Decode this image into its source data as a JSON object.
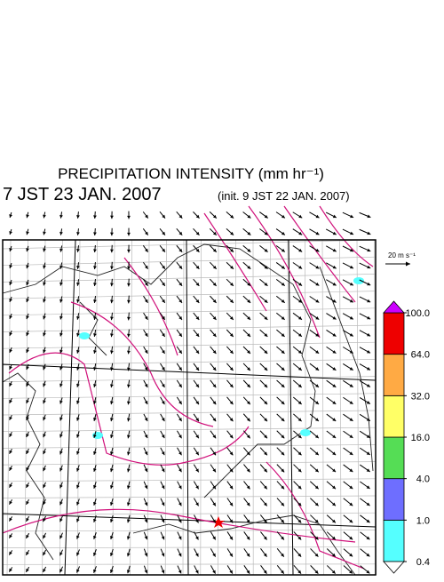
{
  "header": {
    "title": "PRECIPITATION INTENSITY (mm hr⁻¹)",
    "valid_time": "7 JST 23 JAN. 2007",
    "init_time": "(init. 9 JST 22 JAN. 2007)"
  },
  "wind_reference": {
    "label": "20 m s⁻¹"
  },
  "colorbar": {
    "ticks": [
      {
        "value": 0.4,
        "label": "0.4"
      },
      {
        "value": 1,
        "label": "1.0"
      },
      {
        "value": 4,
        "label": "4.0"
      },
      {
        "value": 16,
        "label": "16.0"
      },
      {
        "value": 32,
        "label": "32.0"
      },
      {
        "value": 64,
        "label": "64.0"
      },
      {
        "value": 100,
        "label": "100.0"
      }
    ],
    "colors": [
      "#55ffff",
      "#6e6eff",
      "#55dd55",
      "#ffff66",
      "#ffaa44",
      "#ee0000"
    ],
    "over_color": "#cc00ff",
    "under_color": "#ffffff"
  }
}
